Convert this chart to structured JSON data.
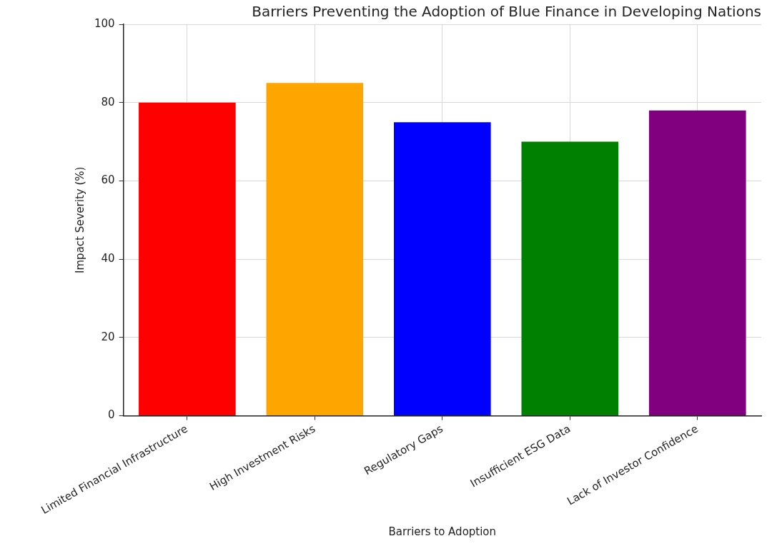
{
  "chart_data": {
    "type": "bar",
    "title": "Barriers Preventing the Adoption of Blue Finance in Developing Nations",
    "xlabel": "Barriers to Adoption",
    "ylabel": "Impact Severity (%)",
    "categories": [
      "Limited Financial Infrastructure",
      "High Investment Risks",
      "Regulatory Gaps",
      "Insufficient ESG Data",
      "Lack of Investor Confidence"
    ],
    "values": [
      80,
      85,
      75,
      70,
      78
    ],
    "colors": [
      "#ff0000",
      "#ffa500",
      "#0000ff",
      "#008000",
      "#800080"
    ],
    "ylim": [
      0,
      100
    ],
    "yticks": [
      0,
      20,
      40,
      60,
      80,
      100
    ],
    "grid": true,
    "legend": false
  }
}
